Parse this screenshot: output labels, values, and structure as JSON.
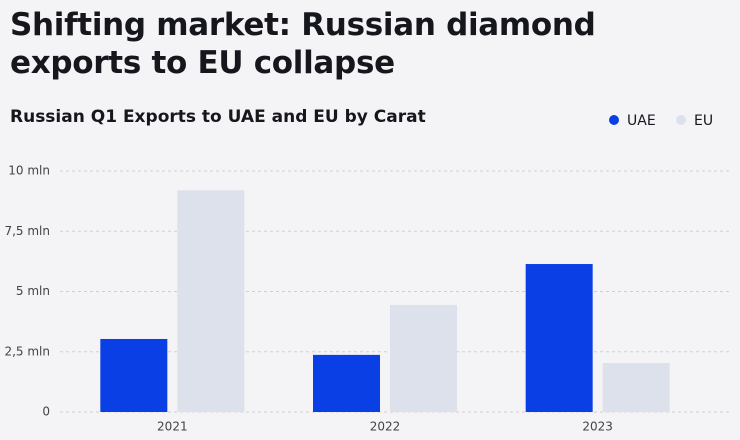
{
  "chart_data": {
    "type": "bar",
    "title": "Shifting market: Russian diamond exports to EU collapse",
    "subtitle": "Russian Q1 Exports to UAE and EU by Carat",
    "categories": [
      "2021",
      "2022",
      "2023"
    ],
    "series": [
      {
        "name": "UAE",
        "color": "#0b3fe6",
        "values": [
          3.03,
          2.37,
          6.14
        ]
      },
      {
        "name": "EU",
        "color": "#dde1ec",
        "values": [
          9.2,
          4.44,
          2.03
        ]
      }
    ],
    "ylim": [
      0,
      10
    ],
    "yticks": [
      0,
      {
        "value": 2.5,
        "label": "2,5 mln"
      },
      {
        "value": 5,
        "label": "5 mln"
      },
      {
        "value": 7.5,
        "label": "7,5 mln"
      },
      {
        "value": 10,
        "label": "10 mln"
      }
    ],
    "grid": true,
    "legend": "top-right"
  }
}
